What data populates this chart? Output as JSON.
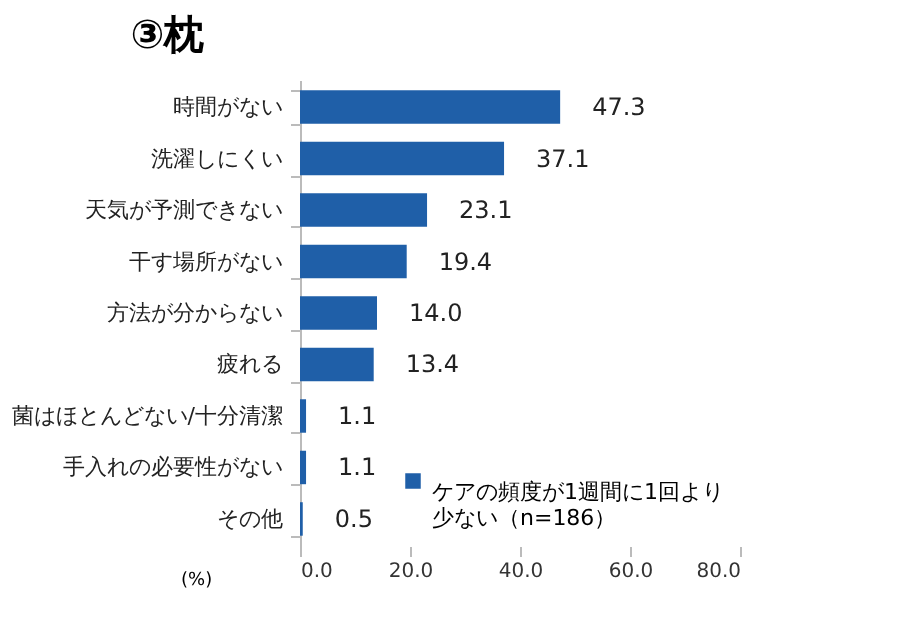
{
  "chart_data": {
    "type": "bar",
    "orientation": "horizontal",
    "title": "③枕",
    "xlabel": "(%)",
    "categories": [
      "時間がない",
      "洗濯しにくい",
      "天気が予測できない",
      "干す場所がない",
      "方法が分からない",
      "疲れる",
      "菌はほとんどない/十分清潔",
      "手入れの必要性がない",
      "その他"
    ],
    "series": [
      {
        "name": "ケアの頻度が1週間に1回より少ない（n=186）",
        "color": "#1f5fa8",
        "values": [
          47.3,
          37.1,
          23.1,
          19.4,
          14.0,
          13.4,
          1.1,
          1.1,
          0.5
        ],
        "value_labels": [
          "47.3",
          "37.1",
          "23.1",
          "19.4",
          "14.0",
          "13.4",
          "1.1",
          "1.1",
          "0.5"
        ]
      }
    ],
    "xlim": [
      0,
      80
    ],
    "xticks": [
      {
        "value": 0,
        "label": "0.0"
      },
      {
        "value": 20,
        "label": "20.0"
      },
      {
        "value": 40,
        "label": "40.0"
      },
      {
        "value": 60,
        "label": "60.0"
      },
      {
        "value": 80,
        "label": "80.0"
      }
    ],
    "grid": false,
    "legend": "bottom right"
  }
}
